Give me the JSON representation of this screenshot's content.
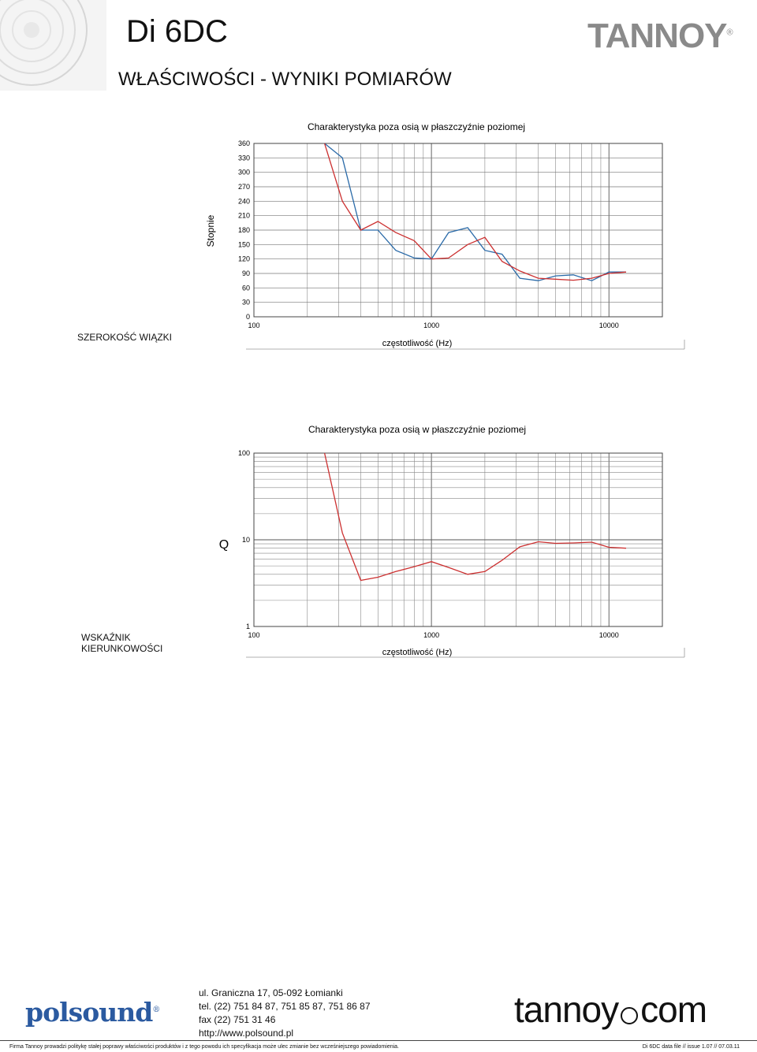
{
  "header": {
    "model": "Di 6DC",
    "brand": "TANNOY",
    "brand_reg": "®",
    "heading": "WŁAŚCIWOŚCI - WYNIKI POMIARÓW"
  },
  "sections": {
    "beamwidth": "SZEROKOŚĆ WIĄZKI",
    "directivity_line1": "WSKAŹNIK",
    "directivity_line2": "KIERUNKOWOŚCI"
  },
  "chart_data": [
    {
      "type": "line",
      "title": "Charakterystyka poza osią w płaszczyźnie poziomej",
      "xlabel": "częstotliwość (Hz)",
      "ylabel": "Stopnie",
      "xscale": "log",
      "xlim": [
        100,
        20000
      ],
      "ylim": [
        0,
        360
      ],
      "xticks": [
        "100",
        "1000",
        "10000"
      ],
      "yticks": [
        "360",
        "330",
        "300",
        "270",
        "240",
        "210",
        "180",
        "150",
        "120",
        "90",
        "60",
        "30",
        "0"
      ],
      "grid": true,
      "series": [
        {
          "color": "#2a6aa8",
          "x": [
            250,
            315,
            400,
            500,
            630,
            800,
            1000,
            1250,
            1600,
            2000,
            2500,
            3150,
            4000,
            5000,
            6300,
            8000,
            10000,
            12500
          ],
          "y": [
            360,
            330,
            180,
            180,
            138,
            122,
            120,
            175,
            185,
            138,
            130,
            80,
            75,
            85,
            87,
            75,
            93,
            93
          ]
        },
        {
          "color": "#cc3030",
          "x": [
            250,
            315,
            400,
            500,
            630,
            800,
            1000,
            1250,
            1600,
            2000,
            2500,
            3150,
            4000,
            5000,
            6300,
            8000,
            10000,
            12500
          ],
          "y": [
            360,
            240,
            180,
            198,
            175,
            158,
            120,
            122,
            150,
            165,
            115,
            95,
            80,
            78,
            76,
            80,
            90,
            93
          ]
        }
      ]
    },
    {
      "type": "line",
      "title": "Charakterystyka poza osią w płaszczyźnie poziomej",
      "xlabel": "częstotliwość (Hz)",
      "ylabel": "Q",
      "xscale": "log",
      "yscale": "log",
      "xlim": [
        100,
        20000
      ],
      "ylim": [
        1,
        100
      ],
      "xticks": [
        "100",
        "1000",
        "10000"
      ],
      "yticks": [
        "100",
        "10",
        "1"
      ],
      "grid": true,
      "series": [
        {
          "color": "#cc3030",
          "x": [
            250,
            315,
            400,
            500,
            630,
            800,
            1000,
            1250,
            1600,
            2000,
            2500,
            3150,
            4000,
            5000,
            6300,
            8000,
            10000,
            12500
          ],
          "y": [
            100,
            12,
            3.4,
            3.7,
            4.3,
            4.9,
            5.6,
            4.8,
            4.0,
            4.3,
            5.8,
            8.3,
            9.5,
            9.1,
            9.2,
            9.4,
            8.2,
            8.0
          ]
        }
      ]
    }
  ],
  "footer": {
    "address": "ul. Graniczna 17, 05-092 Łomianki",
    "tel": "tel. (22) 751 84 87, 751 85 87, 751 86 87",
    "fax": "fax (22) 751 31 46",
    "web": "http://www.polsound.pl",
    "polsound_logo": "polsound",
    "polsound_reg": "®",
    "tannoy_url_left": "tannoy",
    "tannoy_url_right": "com",
    "disclaimer": "Firma Tannoy prowadzi politykę stałej poprawy właściwości produktów i z tego powodu ich specyfikacja może ulec zmianie bez wcześniejszego powiadomienia.",
    "doc_id": "Di 6DC data file // issue 1.07 // 07.03.11"
  }
}
